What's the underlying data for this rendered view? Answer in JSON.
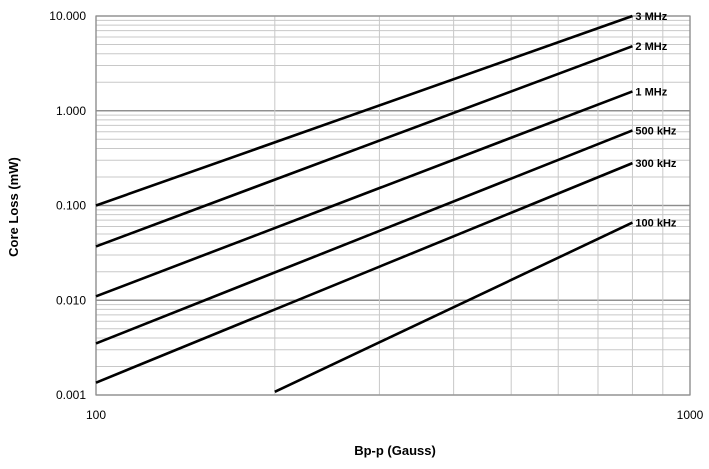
{
  "chart_data": {
    "type": "line",
    "xlabel": "Bp-p (Gauss)",
    "ylabel": "Core Loss (mW)",
    "xscale": "log",
    "yscale": "log",
    "xlim": [
      100,
      1000
    ],
    "ylim": [
      0.001,
      10
    ],
    "grid": true,
    "x_ticks": [
      {
        "value": 100,
        "label": "100"
      },
      {
        "value": 1000,
        "label": "1000"
      }
    ],
    "y_ticks": [
      {
        "value": 0.001,
        "label": "0.001"
      },
      {
        "value": 0.01,
        "label": "0.010"
      },
      {
        "value": 0.1,
        "label": "0.100"
      },
      {
        "value": 1,
        "label": "1.000"
      },
      {
        "value": 10,
        "label": "10.000"
      }
    ],
    "series": [
      {
        "name": "3 MHz",
        "x": [
          100,
          800
        ],
        "y": [
          0.1,
          10.0
        ]
      },
      {
        "name": "2 MHz",
        "x": [
          100,
          800
        ],
        "y": [
          0.037,
          4.8
        ]
      },
      {
        "name": "1 MHz",
        "x": [
          100,
          800
        ],
        "y": [
          0.011,
          1.6
        ]
      },
      {
        "name": "500 kHz",
        "x": [
          100,
          800
        ],
        "y": [
          0.0035,
          0.62
        ]
      },
      {
        "name": "300 kHz",
        "x": [
          100,
          800
        ],
        "y": [
          0.00135,
          0.28
        ]
      },
      {
        "name": "100 kHz",
        "x": [
          200,
          800
        ],
        "y": [
          0.00108,
          0.066
        ]
      }
    ]
  }
}
